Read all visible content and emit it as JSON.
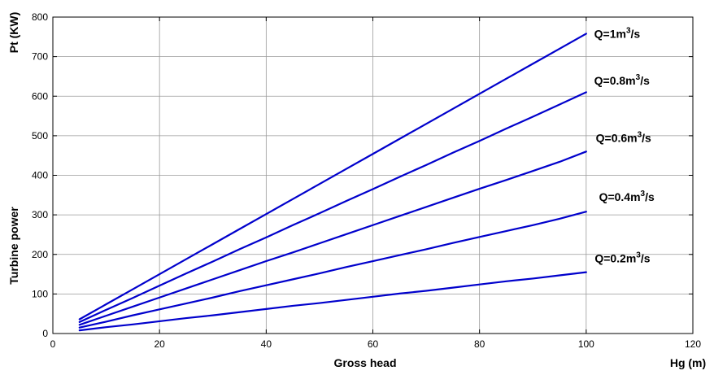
{
  "chart_data": {
    "type": "line",
    "title": "",
    "xlabel": "Gross head",
    "xlabel_right": "Hg (m)",
    "ylabel": "Turbine power",
    "ylabel_top": "Pt (KW)",
    "xlim": [
      0,
      120
    ],
    "ylim": [
      0,
      800
    ],
    "xticks": [
      0,
      20,
      40,
      60,
      80,
      100,
      120
    ],
    "yticks": [
      0,
      100,
      200,
      300,
      400,
      500,
      600,
      700,
      800
    ],
    "grid": true,
    "legend": "inline labels at right end of each line",
    "line_color": "#0000cc",
    "series": [
      {
        "name": "Q=1m3/s",
        "label_main": "Q=1m",
        "label_sup": "3",
        "label_tail": "/s",
        "x": [
          5,
          10,
          15,
          20,
          25,
          30,
          35,
          40,
          45,
          50,
          55,
          60,
          65,
          70,
          75,
          80,
          85,
          90,
          95,
          100
        ],
        "values": [
          36,
          74,
          112,
          150,
          188,
          226,
          264,
          302,
          340,
          378,
          416,
          454,
          492,
          530,
          568,
          606,
          644,
          682,
          720,
          758
        ]
      },
      {
        "name": "Q=0.8m3/s",
        "label_main": "Q=0.8m",
        "label_sup": "3",
        "label_tail": "/s",
        "x": [
          5,
          10,
          15,
          20,
          25,
          30,
          35,
          40,
          45,
          50,
          55,
          60,
          65,
          70,
          75,
          80,
          85,
          90,
          95,
          100
        ],
        "values": [
          29,
          60,
          90,
          121,
          152,
          182,
          213,
          243,
          274,
          304,
          335,
          365,
          396,
          426,
          457,
          487,
          518,
          548,
          579,
          610
        ]
      },
      {
        "name": "Q=0.6m3/s",
        "label_main": "Q=0.6m",
        "label_sup": "3",
        "label_tail": "/s",
        "x": [
          5,
          10,
          15,
          20,
          25,
          30,
          35,
          40,
          45,
          50,
          55,
          60,
          65,
          70,
          75,
          80,
          85,
          90,
          95,
          100
        ],
        "values": [
          22,
          45,
          68,
          91,
          114,
          137,
          160,
          183,
          205,
          228,
          251,
          274,
          297,
          320,
          343,
          366,
          388,
          411,
          434,
          460
        ]
      },
      {
        "name": "Q=0.4m3/s",
        "label_main": "Q=0.4m",
        "label_sup": "3",
        "label_tail": "/s",
        "x": [
          5,
          10,
          15,
          20,
          25,
          30,
          35,
          40,
          45,
          50,
          55,
          60,
          65,
          70,
          75,
          80,
          85,
          90,
          95,
          100
        ],
        "values": [
          15,
          30,
          46,
          61,
          76,
          91,
          107,
          122,
          137,
          152,
          168,
          183,
          198,
          213,
          229,
          244,
          259,
          274,
          290,
          308
        ]
      },
      {
        "name": "Q=0.2m3/s",
        "label_main": "Q=0.2m",
        "label_sup": "3",
        "label_tail": "/s",
        "x": [
          5,
          10,
          15,
          20,
          25,
          30,
          35,
          40,
          45,
          50,
          55,
          60,
          65,
          70,
          75,
          80,
          85,
          90,
          95,
          100
        ],
        "values": [
          8,
          16,
          23,
          31,
          39,
          46,
          54,
          62,
          70,
          77,
          85,
          93,
          101,
          108,
          116,
          124,
          132,
          139,
          147,
          155
        ]
      }
    ]
  }
}
